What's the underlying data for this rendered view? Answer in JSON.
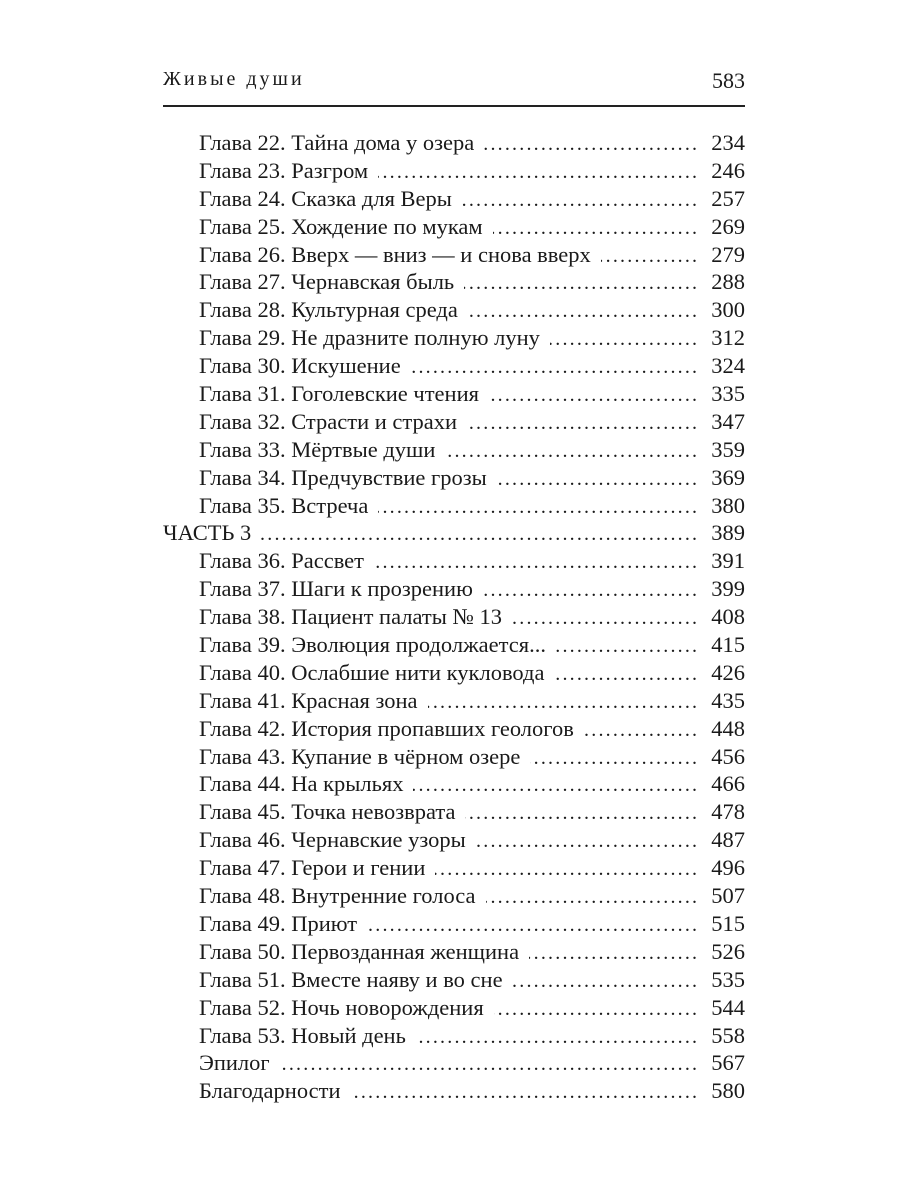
{
  "header": {
    "running_title": "Живые души",
    "page_number": "583"
  },
  "toc": [
    {
      "title": "Глава 22. Тайна дома у озера",
      "page": "234",
      "level": 2
    },
    {
      "title": "Глава 23. Разгром",
      "page": "246",
      "level": 2
    },
    {
      "title": "Глава 24. Сказка для Веры",
      "page": "257",
      "level": 2
    },
    {
      "title": "Глава 25. Хождение по мукам",
      "page": "269",
      "level": 2
    },
    {
      "title": "Глава 26. Вверх — вниз — и снова вверх",
      "page": "279",
      "level": 2
    },
    {
      "title": "Глава 27. Чернавская быль",
      "page": "288",
      "level": 2
    },
    {
      "title": "Глава 28. Культурная среда",
      "page": "300",
      "level": 2
    },
    {
      "title": "Глава 29. Не дразните полную луну",
      "page": "312",
      "level": 2
    },
    {
      "title": "Глава 30. Искушение",
      "page": "324",
      "level": 2
    },
    {
      "title": "Глава 31. Гоголевские чтения",
      "page": "335",
      "level": 2
    },
    {
      "title": "Глава 32. Страсти и страхи",
      "page": "347",
      "level": 2
    },
    {
      "title": "Глава 33. Мёртвые души",
      "page": "359",
      "level": 2
    },
    {
      "title": "Глава 34. Предчувствие грозы",
      "page": "369",
      "level": 2
    },
    {
      "title": "Глава 35. Встреча",
      "page": "380",
      "level": 2
    },
    {
      "title": "ЧАСТЬ 3",
      "page": "389",
      "level": 1
    },
    {
      "title": "Глава 36. Рассвет",
      "page": "391",
      "level": 2
    },
    {
      "title": "Глава 37. Шаги к прозрению",
      "page": "399",
      "level": 2
    },
    {
      "title": "Глава 38. Пациент палаты № 13",
      "page": "408",
      "level": 2
    },
    {
      "title": "Глава 39. Эволюция продолжается...",
      "page": "415",
      "level": 2
    },
    {
      "title": "Глава 40. Ослабшие нити кукловода",
      "page": "426",
      "level": 2
    },
    {
      "title": "Глава 41. Красная зона",
      "page": "435",
      "level": 2
    },
    {
      "title": "Глава 42. История пропавших геологов",
      "page": "448",
      "level": 2
    },
    {
      "title": "Глава 43. Купание в чёрном озере",
      "page": "456",
      "level": 2
    },
    {
      "title": "Глава 44. На крыльях",
      "page": "466",
      "level": 2
    },
    {
      "title": "Глава 45. Точка невозврата",
      "page": "478",
      "level": 2
    },
    {
      "title": "Глава 46. Чернавские узоры",
      "page": "487",
      "level": 2
    },
    {
      "title": "Глава 47. Герои и гении",
      "page": "496",
      "level": 2
    },
    {
      "title": "Глава 48. Внутренние голоса",
      "page": "507",
      "level": 2
    },
    {
      "title": "Глава 49. Приют",
      "page": "515",
      "level": 2
    },
    {
      "title": "Глава 50. Первозданная женщина",
      "page": "526",
      "level": 2
    },
    {
      "title": "Глава 51. Вместе наяву и во сне",
      "page": "535",
      "level": 2
    },
    {
      "title": "Глава 52. Ночь новорождения",
      "page": "544",
      "level": 2
    },
    {
      "title": "Глава 53. Новый день",
      "page": "558",
      "level": 2
    },
    {
      "title": "Эпилог",
      "page": "567",
      "level": 2
    },
    {
      "title": "Благодарности",
      "page": "580",
      "level": 2
    }
  ]
}
